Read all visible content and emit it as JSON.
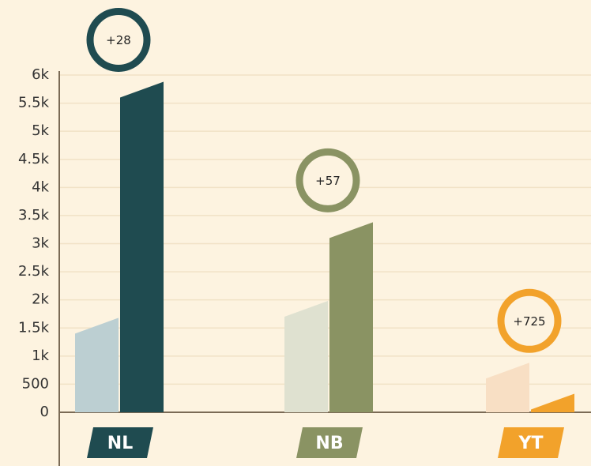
{
  "chart_data": {
    "type": "bar",
    "categories": [
      "NL",
      "NB",
      "YT"
    ],
    "category_colors": [
      "#1f4b50",
      "#8a9363",
      "#f2a22b"
    ],
    "annotations": [
      "+28",
      "+57",
      "+725"
    ],
    "series": [
      {
        "colors": [
          "#bccfd2",
          "#dfe1d0",
          "#f8dfc4"
        ],
        "values": [
          1400,
          1700,
          600
        ]
      },
      {
        "colors": [
          "#1f4b50",
          "#8a9363",
          "#f2a22b"
        ],
        "values": [
          5600,
          3100,
          50
        ]
      }
    ],
    "ylim": [
      0,
      6000
    ],
    "yticks": [
      0,
      500,
      {
        "value": 1000,
        "label": "1k"
      },
      {
        "value": 1500,
        "label": "1.5k"
      },
      {
        "value": 2000,
        "label": "2k"
      },
      {
        "value": 2500,
        "label": "2.5k"
      },
      {
        "value": 3000,
        "label": "3k"
      },
      {
        "value": 3500,
        "label": "3.5k"
      },
      {
        "value": 4000,
        "label": "4k"
      },
      {
        "value": 4500,
        "label": "4.5k"
      },
      {
        "value": 5000,
        "label": "5k"
      },
      {
        "value": 5500,
        "label": "5.5k"
      },
      {
        "value": 6000,
        "label": "6k"
      }
    ],
    "grid": true
  }
}
